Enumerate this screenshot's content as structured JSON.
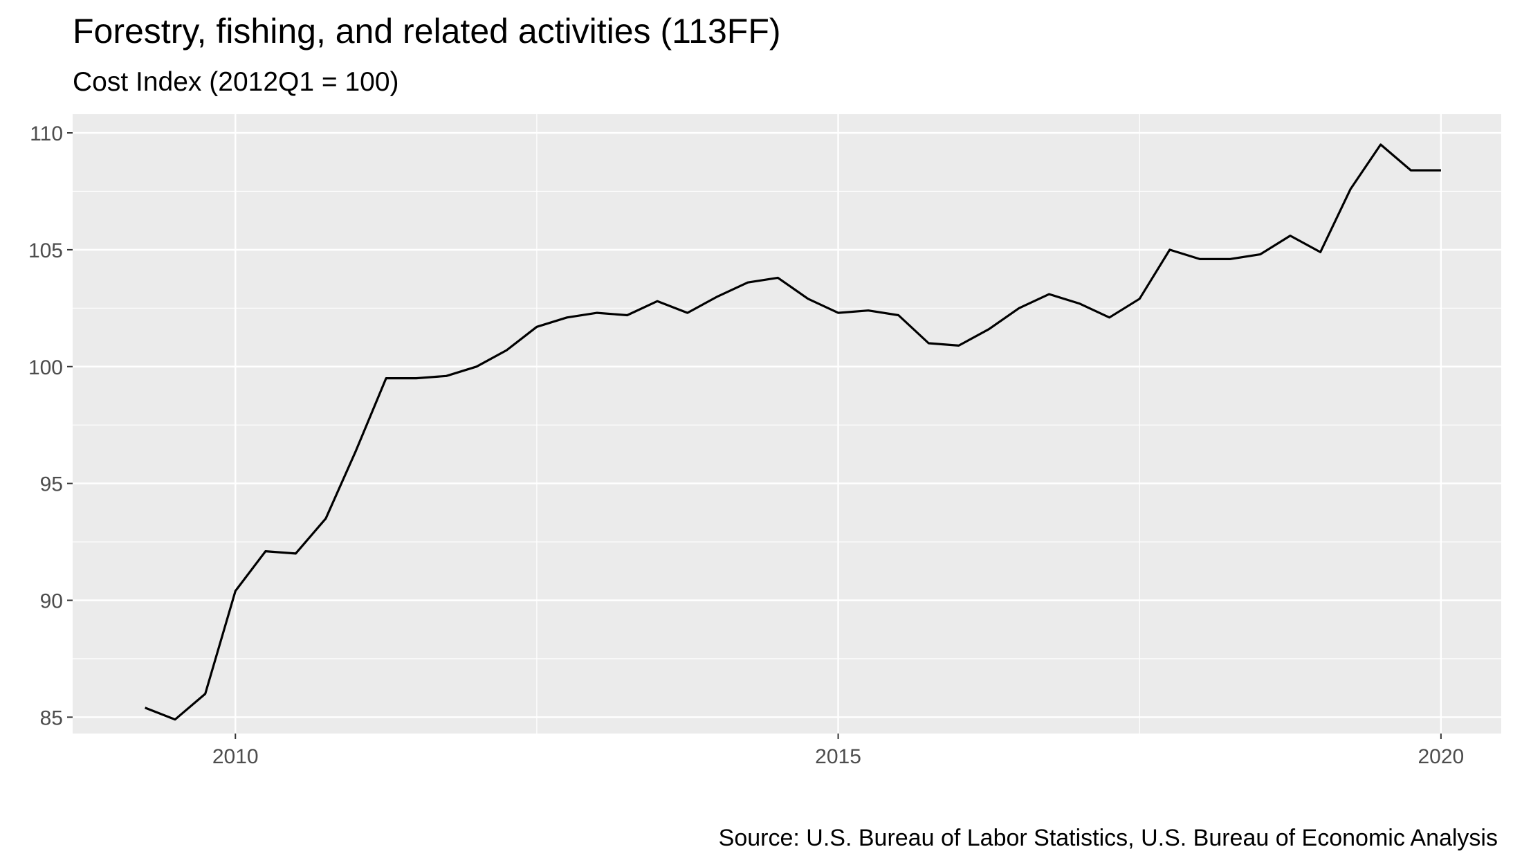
{
  "chart_data": {
    "type": "line",
    "title": "Forestry, fishing, and related activities (113FF)",
    "subtitle": "Cost Index (2012Q1 = 100)",
    "caption": "Source: U.S. Bureau of Labor Statistics, U.S. Bureau of Economic Analysis",
    "xlabel": "",
    "ylabel": "",
    "x_ticks": [
      2010,
      2015,
      2020
    ],
    "y_ticks": [
      85,
      90,
      95,
      100,
      105,
      110
    ],
    "xlim": [
      2008.65,
      2020.5
    ],
    "ylim": [
      84.3,
      110.8
    ],
    "grid": true,
    "legend": "none",
    "colors": {
      "panel": "#ebebeb",
      "grid": "#ffffff",
      "line": "#000000",
      "tick_text": "#4d4d4d"
    },
    "series": [
      {
        "x": [
          2009.25,
          2009.5,
          2009.75,
          2010.0,
          2010.25,
          2010.5,
          2010.75,
          2011.0,
          2011.25,
          2011.5,
          2011.75,
          2012.0,
          2012.25,
          2012.5,
          2012.75,
          2013.0,
          2013.25,
          2013.5,
          2013.75,
          2014.0,
          2014.25,
          2014.5,
          2014.75,
          2015.0,
          2015.25,
          2015.5,
          2015.75,
          2016.0,
          2016.25,
          2016.5,
          2016.75,
          2017.0,
          2017.25,
          2017.5,
          2017.75,
          2018.0,
          2018.25,
          2018.5,
          2018.75,
          2019.0,
          2019.25,
          2019.5,
          2019.75,
          2020.0
        ],
        "y": [
          85.4,
          84.9,
          86.0,
          90.4,
          92.1,
          92.0,
          93.5,
          96.4,
          99.5,
          99.5,
          99.6,
          100.0,
          100.7,
          101.7,
          102.1,
          102.3,
          102.2,
          102.8,
          102.3,
          103.0,
          103.6,
          103.8,
          102.9,
          102.3,
          102.4,
          102.2,
          101.0,
          100.9,
          101.6,
          102.5,
          103.1,
          102.7,
          102.1,
          102.9,
          105.0,
          104.6,
          104.6,
          104.8,
          105.6,
          104.9,
          107.6,
          109.5,
          108.4,
          108.4
        ]
      }
    ]
  }
}
